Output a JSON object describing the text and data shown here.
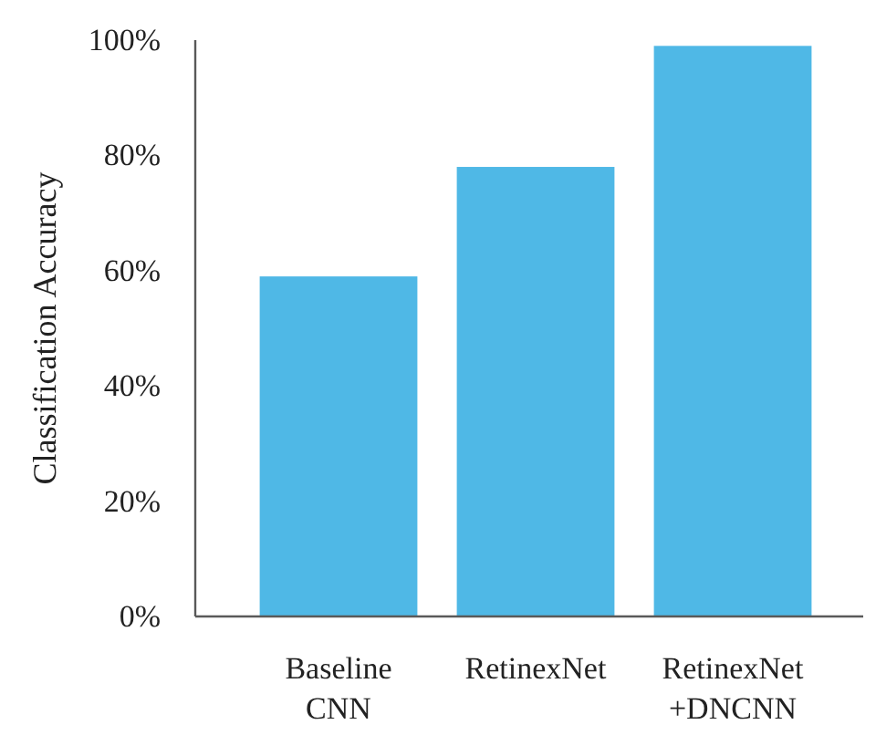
{
  "chart_data": {
    "type": "bar",
    "ylabel": "Classification Accuracy",
    "categories": [
      "Baseline\nCNN",
      "RetinexNet",
      "RetinexNet\n+DNCNN"
    ],
    "values": [
      59,
      78,
      99
    ],
    "color": "#4fb8e6",
    "ylim": [
      0,
      100
    ],
    "yticks": [
      {
        "value": 0,
        "label": "0%"
      },
      {
        "value": 20,
        "label": "20%"
      },
      {
        "value": 40,
        "label": "40%"
      },
      {
        "value": 60,
        "label": "60%"
      },
      {
        "value": 80,
        "label": "80%"
      },
      {
        "value": 100,
        "label": "100%"
      }
    ],
    "grid": false
  }
}
